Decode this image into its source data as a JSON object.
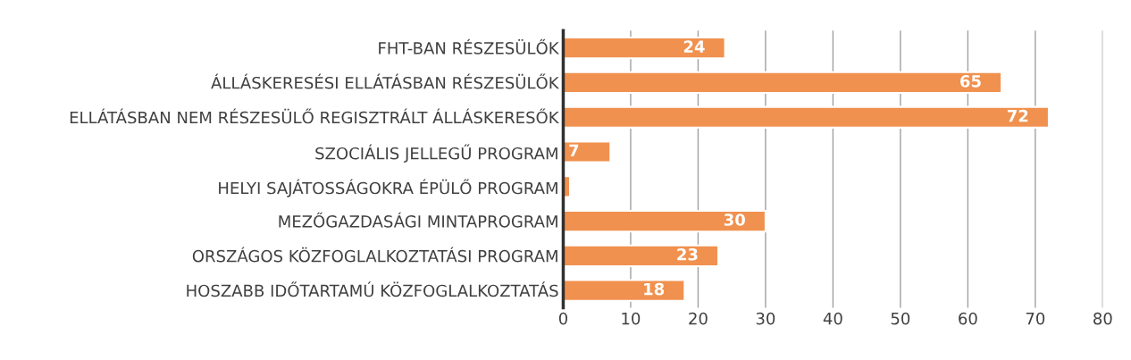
{
  "chart_data": {
    "type": "bar",
    "orientation": "horizontal",
    "categories": [
      "FHT-BAN RÉSZESÜLŐK",
      "ÁLLÁSKERESÉSI ELLÁTÁSBAN RÉSZESÜLŐK",
      "ELLÁTÁSBAN NEM RÉSZESÜLŐ REGISZTRÁLT ÁLLÁSKERESŐK",
      "SZOCIÁLIS JELLEGŰ PROGRAM",
      "HELYI SAJÁTOSSÁGOKRA ÉPÜLŐ PROGRAM",
      "MEZŐGAZDASÁGI MINTAPROGRAM",
      "ORSZÁGOS KÖZFOGLALKOZTATÁSI PROGRAM",
      "HOSZABB IDŐTARTAMÚ KÖZFOGLALKOZTATÁS"
    ],
    "values": [
      24,
      65,
      72,
      7,
      1,
      30,
      23,
      18
    ],
    "value_labels": [
      "24",
      "65",
      "72",
      "7",
      null,
      "30",
      "23",
      "18"
    ],
    "color": "#f0914f",
    "xlim": [
      0,
      80
    ],
    "xticks": [
      0,
      10,
      20,
      30,
      40,
      50,
      60,
      70,
      80
    ],
    "grid": "x"
  }
}
